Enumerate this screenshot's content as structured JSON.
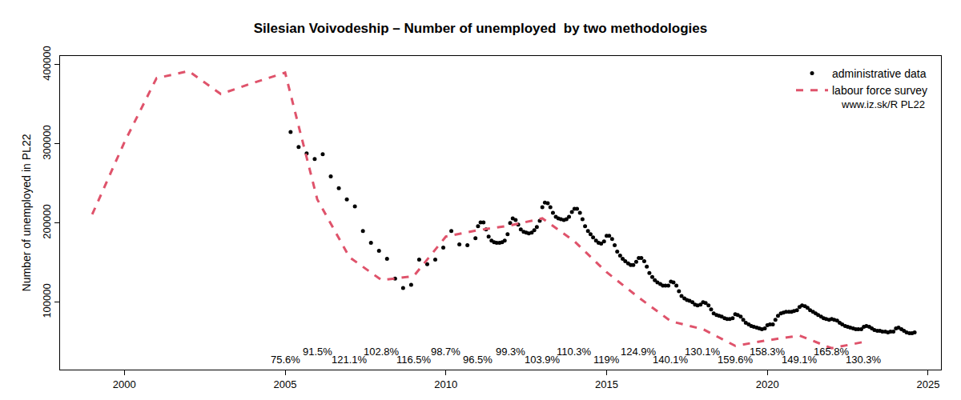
{
  "chart_data": {
    "type": "scatter",
    "title": "Silesian Voivodeship – Number of unemployed  by two methodologies",
    "y_label": "Number of unemployed in PL22",
    "xlim": [
      1998.0,
      2025.4
    ],
    "xticks": [
      2000,
      2005,
      2010,
      2015,
      2020,
      2025
    ],
    "ylim": [
      15000,
      411000
    ],
    "yticks": [
      100000,
      200000,
      300000,
      400000
    ],
    "grid": false,
    "legend": "top right",
    "note": "www.iz.sk/R PL22",
    "series": [
      {
        "name": "administrative data",
        "color": "#000000",
        "marker": "dot",
        "x": [
          2005.17,
          2005.42,
          2005.67,
          2005.92,
          2006.17,
          2006.42,
          2006.67,
          2006.92,
          2007.17,
          2007.42,
          2007.67,
          2007.92,
          2008.17,
          2008.42,
          2008.67,
          2008.92,
          2009.17,
          2009.42,
          2009.67,
          2009.92,
          2010.17,
          2010.42,
          2010.67,
          2010.92,
          2011,
          2011.08,
          2011.17,
          2011.25,
          2011.33,
          2011.42,
          2011.5,
          2011.58,
          2011.67,
          2011.75,
          2011.83,
          2011.92,
          2012,
          2012.08,
          2012.17,
          2012.25,
          2012.33,
          2012.42,
          2012.5,
          2012.58,
          2012.67,
          2012.75,
          2012.83,
          2012.92,
          2013,
          2013.08,
          2013.17,
          2013.25,
          2013.33,
          2013.42,
          2013.5,
          2013.58,
          2013.67,
          2013.75,
          2013.83,
          2013.92,
          2014,
          2014.08,
          2014.17,
          2014.25,
          2014.33,
          2014.42,
          2014.5,
          2014.58,
          2014.67,
          2014.75,
          2014.83,
          2014.92,
          2015,
          2015.08,
          2015.17,
          2015.25,
          2015.33,
          2015.42,
          2015.5,
          2015.58,
          2015.67,
          2015.75,
          2015.83,
          2015.92,
          2016,
          2016.08,
          2016.17,
          2016.25,
          2016.33,
          2016.42,
          2016.5,
          2016.58,
          2016.67,
          2016.75,
          2016.83,
          2016.92,
          2017,
          2017.08,
          2017.17,
          2017.25,
          2017.33,
          2017.42,
          2017.5,
          2017.58,
          2017.67,
          2017.75,
          2017.83,
          2017.92,
          2018,
          2018.08,
          2018.17,
          2018.25,
          2018.33,
          2018.42,
          2018.5,
          2018.58,
          2018.67,
          2018.75,
          2018.83,
          2018.92,
          2019,
          2019.08,
          2019.17,
          2019.25,
          2019.33,
          2019.42,
          2019.5,
          2019.58,
          2019.67,
          2019.75,
          2019.83,
          2019.92,
          2020,
          2020.08,
          2020.17,
          2020.25,
          2020.33,
          2020.42,
          2020.5,
          2020.58,
          2020.67,
          2020.75,
          2020.83,
          2020.92,
          2021,
          2021.08,
          2021.17,
          2021.25,
          2021.33,
          2021.42,
          2021.5,
          2021.58,
          2021.67,
          2021.75,
          2021.83,
          2021.92,
          2022,
          2022.08,
          2022.17,
          2022.25,
          2022.33,
          2022.42,
          2022.5,
          2022.58,
          2022.67,
          2022.75,
          2022.83,
          2022.92,
          2023,
          2023.08,
          2023.17,
          2023.25,
          2023.33,
          2023.42,
          2023.5,
          2023.58,
          2023.67,
          2023.75,
          2023.83,
          2023.92,
          2024,
          2024.08,
          2024.17,
          2024.25,
          2024.33,
          2024.42,
          2024.5,
          2024.58
        ],
        "values": [
          315000,
          296000,
          288000,
          281000,
          287000,
          259000,
          244000,
          230000,
          221000,
          190000,
          175000,
          165000,
          155000,
          130000,
          118000,
          122000,
          154000,
          148000,
          154000,
          169000,
          190000,
          173000,
          172000,
          181000,
          196000,
          201000,
          201000,
          192000,
          183000,
          178000,
          176000,
          175000,
          175000,
          176000,
          178000,
          186000,
          200000,
          206000,
          204000,
          198000,
          192000,
          189000,
          188000,
          187000,
          188000,
          191000,
          195000,
          203000,
          220000,
          226000,
          225000,
          220000,
          213000,
          208000,
          206000,
          205000,
          204000,
          205000,
          208000,
          214000,
          218000,
          218000,
          213000,
          205000,
          196000,
          190000,
          186000,
          182000,
          178000,
          175000,
          174000,
          177000,
          184000,
          184000,
          180000,
          172000,
          164000,
          159000,
          155000,
          152000,
          149000,
          147000,
          147000,
          151000,
          156000,
          156000,
          152000,
          145000,
          137000,
          132000,
          128000,
          125000,
          123000,
          121000,
          121000,
          121000,
          126000,
          125000,
          121000,
          114000,
          108000,
          105000,
          103000,
          102000,
          100000,
          97000,
          96000,
          97000,
          100000,
          99000,
          96000,
          91000,
          86000,
          84000,
          83000,
          82000,
          80000,
          79000,
          79000,
          80000,
          85000,
          84000,
          82000,
          78000,
          74000,
          72000,
          70000,
          69000,
          68000,
          67000,
          66000,
          67000,
          71000,
          72000,
          72000,
          78000,
          83000,
          86000,
          87000,
          88000,
          88000,
          88000,
          89000,
          90000,
          94000,
          96000,
          95000,
          93000,
          90000,
          88000,
          86000,
          84000,
          82000,
          80000,
          79000,
          78000,
          79000,
          78000,
          77000,
          74000,
          72000,
          70000,
          69000,
          68000,
          67000,
          66000,
          66000,
          66000,
          69000,
          70000,
          69000,
          67000,
          65000,
          64000,
          64000,
          63000,
          63000,
          62000,
          63000,
          63000,
          67000,
          68000,
          66000,
          64000,
          62000,
          61000,
          61000,
          62000
        ]
      },
      {
        "name": "labour force survey",
        "color": "#DF536B",
        "line_style": "dashed",
        "x": [
          1999,
          2000,
          2001,
          2002,
          2003,
          2004,
          2005,
          2006,
          2007,
          2008,
          2009,
          2010,
          2011,
          2012,
          2013,
          2014,
          2015,
          2016,
          2017,
          2018,
          2019,
          2020,
          2021,
          2022,
          2023
        ],
        "values": [
          211000,
          302000,
          383000,
          392000,
          363000,
          377000,
          390000,
          230000,
          157000,
          128000,
          133000,
          183000,
          191000,
          197000,
          206000,
          177000,
          138000,
          106000,
          76000,
          66000,
          45000,
          52000,
          58000,
          42000,
          50000
        ]
      }
    ],
    "annotations": [
      {
        "x": 2005,
        "text": "75.6%"
      },
      {
        "x": 2006,
        "text": "91.5%"
      },
      {
        "x": 2007,
        "text": "121.1%"
      },
      {
        "x": 2008,
        "text": "102.8%"
      },
      {
        "x": 2009,
        "text": "116.5%"
      },
      {
        "x": 2010,
        "text": "98.7%"
      },
      {
        "x": 2011,
        "text": "96.5%"
      },
      {
        "x": 2012,
        "text": "99.3%"
      },
      {
        "x": 2013,
        "text": "103.9%"
      },
      {
        "x": 2014,
        "text": "110.3%"
      },
      {
        "x": 2015,
        "text": "119%"
      },
      {
        "x": 2016,
        "text": "124.9%"
      },
      {
        "x": 2017,
        "text": "140.1%"
      },
      {
        "x": 2018,
        "text": "130.1%"
      },
      {
        "x": 2019,
        "text": "159.6%"
      },
      {
        "x": 2020,
        "text": "158.3%"
      },
      {
        "x": 2021,
        "text": "149.1%"
      },
      {
        "x": 2022,
        "text": "165.8%"
      },
      {
        "x": 2023,
        "text": "130.3%"
      }
    ]
  }
}
